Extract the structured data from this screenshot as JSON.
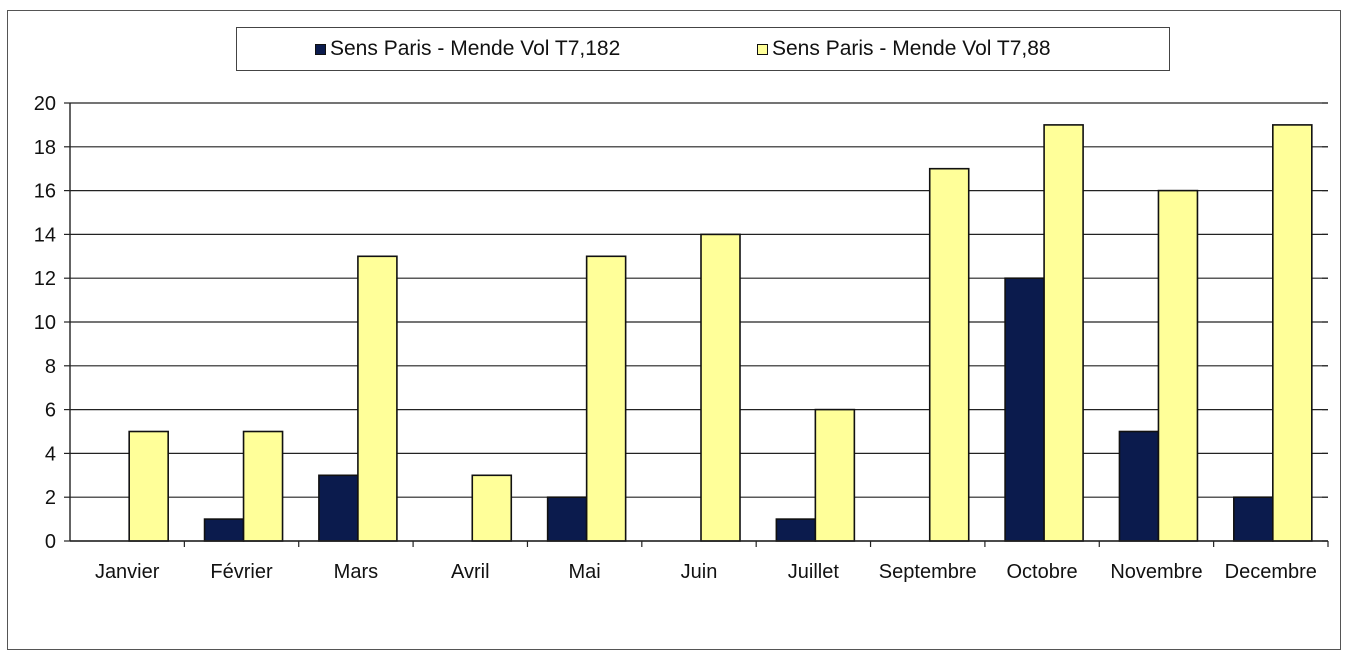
{
  "chart_data": {
    "type": "bar",
    "categories": [
      "Janvier",
      "Février",
      "Mars",
      "Avril",
      "Mai",
      "Juin",
      "Juillet",
      "Septembre",
      "Octobre",
      "Novembre",
      "Decembre"
    ],
    "series": [
      {
        "name": "Sens Paris - Mende  Vol T7,182",
        "color": "#0b1b4d",
        "values": [
          0,
          1,
          3,
          0,
          2,
          0,
          1,
          0,
          12,
          5,
          2
        ]
      },
      {
        "name": "Sens Paris - Mende  Vol T7,88",
        "color": "#ffff99",
        "values": [
          5,
          5,
          13,
          3,
          13,
          14,
          6,
          17,
          19,
          16,
          19
        ]
      }
    ],
    "yticks": [
      "0",
      "2",
      "4",
      "6",
      "8",
      "10",
      "12",
      "14",
      "16",
      "18",
      "20"
    ],
    "ylim": [
      0,
      20
    ],
    "grid": true,
    "legend_position": "top",
    "title": "",
    "xlabel": "",
    "ylabel": ""
  }
}
